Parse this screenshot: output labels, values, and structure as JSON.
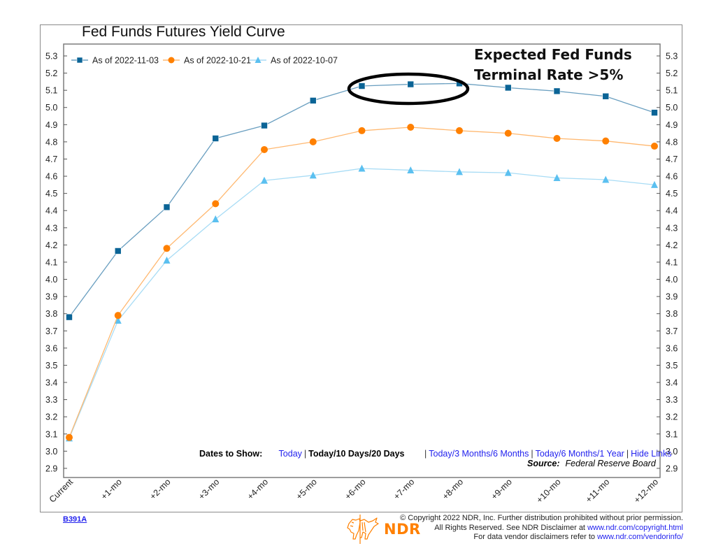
{
  "chart_data": {
    "type": "line",
    "title": "Fed Funds Futures Yield Curve",
    "xlabel": "",
    "ylabel": "",
    "categories": [
      "Current",
      "+1-mo",
      "+2-mo",
      "+3-mo",
      "+4-mo",
      "+5-mo",
      "+6-mo",
      "+7-mo",
      "+8-mo",
      "+9-mo",
      "+10-mo",
      "+11-mo",
      "+12-mo"
    ],
    "ylim": [
      2.85,
      5.35
    ],
    "yticks": [
      "2.9",
      "3.0",
      "3.1",
      "3.2",
      "3.3",
      "3.4",
      "3.5",
      "3.6",
      "3.7",
      "3.8",
      "3.9",
      "4.0",
      "4.1",
      "4.2",
      "4.3",
      "4.4",
      "4.5",
      "4.6",
      "4.7",
      "4.8",
      "4.9",
      "5.0",
      "5.1",
      "5.2",
      "5.3"
    ],
    "dual_y_axis": true,
    "grid": false,
    "legend_position": "top-left",
    "series": [
      {
        "name": "As of 2022-11-03",
        "marker": "square",
        "color": "#0b6496",
        "line_color": "#6a9fc0",
        "values": [
          3.78,
          4.165,
          4.42,
          4.82,
          4.895,
          5.04,
          5.125,
          5.135,
          5.14,
          5.115,
          5.095,
          5.065,
          4.97
        ]
      },
      {
        "name": "As of 2022-10-21",
        "marker": "circle",
        "color": "#ff8000",
        "line_color": "#ffb870",
        "values": [
          3.08,
          3.79,
          4.18,
          4.44,
          4.755,
          4.8,
          4.865,
          4.885,
          4.865,
          4.85,
          4.82,
          4.805,
          4.775
        ]
      },
      {
        "name": "As of 2022-10-07",
        "marker": "triangle",
        "color": "#5bc0f0",
        "line_color": "#a8dcf5",
        "values": [
          3.075,
          3.76,
          4.11,
          4.35,
          4.575,
          4.605,
          4.645,
          4.635,
          4.625,
          4.62,
          4.59,
          4.58,
          4.55
        ]
      }
    ],
    "annotations": [
      {
        "text": "Expected Fed Funds Terminal Rate >5%",
        "highlight": "ellipse around +6-mo to +8-mo on 2022-11-03 series"
      }
    ]
  },
  "annotation": {
    "line1": "Expected Fed Funds",
    "line2": "Terminal Rate >5%"
  },
  "links": {
    "label": "Dates to Show:",
    "items": [
      {
        "label": "Today",
        "active": false
      },
      {
        "label": "Today/10 Days/20 Days",
        "active": true
      },
      {
        "label": "Today/3 Months/6 Months",
        "active": false
      },
      {
        "label": "Today/6 Months/1 Year",
        "active": false
      },
      {
        "label": "Hide Links",
        "active": false
      }
    ]
  },
  "source": {
    "label": "Source:",
    "value": "Federal Reserve Board"
  },
  "footer": {
    "chart_id": "B391A",
    "brand": "NDR",
    "copyright_line1": "© Copyright 2022 NDR, Inc. Further distribution prohibited without prior permission.",
    "copyright_line2_prefix": "All Rights Reserved. See NDR Disclaimer at ",
    "copyright_link": "www.ndr.com/copyright.html",
    "vendor_prefix": "For data vendor disclaimers refer to ",
    "vendor_link": "www.ndr.com/vendorinfo/"
  },
  "colors": {
    "link": "#2222ee",
    "brand": "#ff8000",
    "frame": "#8a8a8a"
  }
}
